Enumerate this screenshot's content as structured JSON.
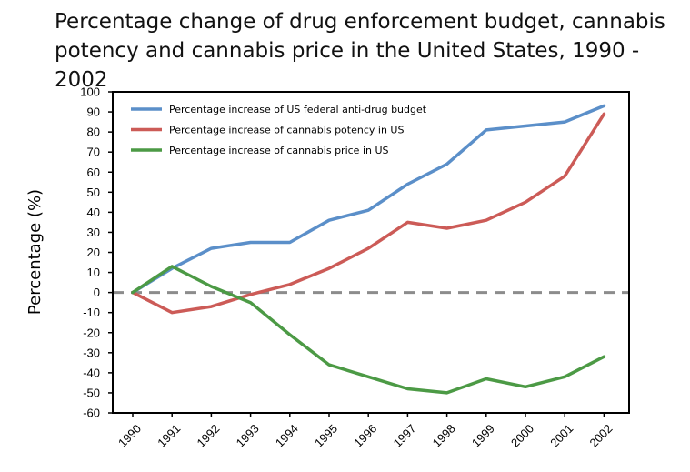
{
  "title_lines": [
    "Percentage change of drug enforcement budget, cannabis",
    "potency and cannabis price in the United States, 1990 - 2002"
  ],
  "chart_data": {
    "type": "line",
    "title": "Percentage change of drug enforcement budget, cannabis potency and cannabis price in the United States, 1990 - 2002",
    "xlabel": "",
    "ylabel": "Percentage (%)",
    "categories": [
      "1990",
      "1991",
      "1992",
      "1993",
      "1994",
      "1995",
      "1996",
      "1997",
      "1998",
      "1999",
      "2000",
      "2001",
      "2002"
    ],
    "ylim": [
      -60,
      100
    ],
    "yticks": [
      100,
      90,
      80,
      70,
      60,
      50,
      40,
      30,
      20,
      10,
      0,
      -10,
      -20,
      -30,
      -40,
      -50,
      -60
    ],
    "reference_line": 0,
    "legend_position": "top-left",
    "series": [
      {
        "name": "Percentage increase of US federal anti-drug budget",
        "color": "#5b8fc9",
        "values": [
          0,
          12,
          22,
          25,
          25,
          36,
          41,
          54,
          64,
          81,
          83,
          85,
          93
        ]
      },
      {
        "name": "Percentage increase of cannabis potency in US",
        "color": "#cc5b57",
        "values": [
          0,
          -10,
          -7,
          -1,
          4,
          12,
          22,
          35,
          32,
          36,
          45,
          58,
          89
        ]
      },
      {
        "name": "Percentage increase of cannabis price in US",
        "color": "#4c9a45",
        "values": [
          0,
          13,
          3,
          -5,
          -21,
          -36,
          -42,
          -48,
          -50,
          -43,
          -47,
          -42,
          -32
        ]
      }
    ]
  }
}
